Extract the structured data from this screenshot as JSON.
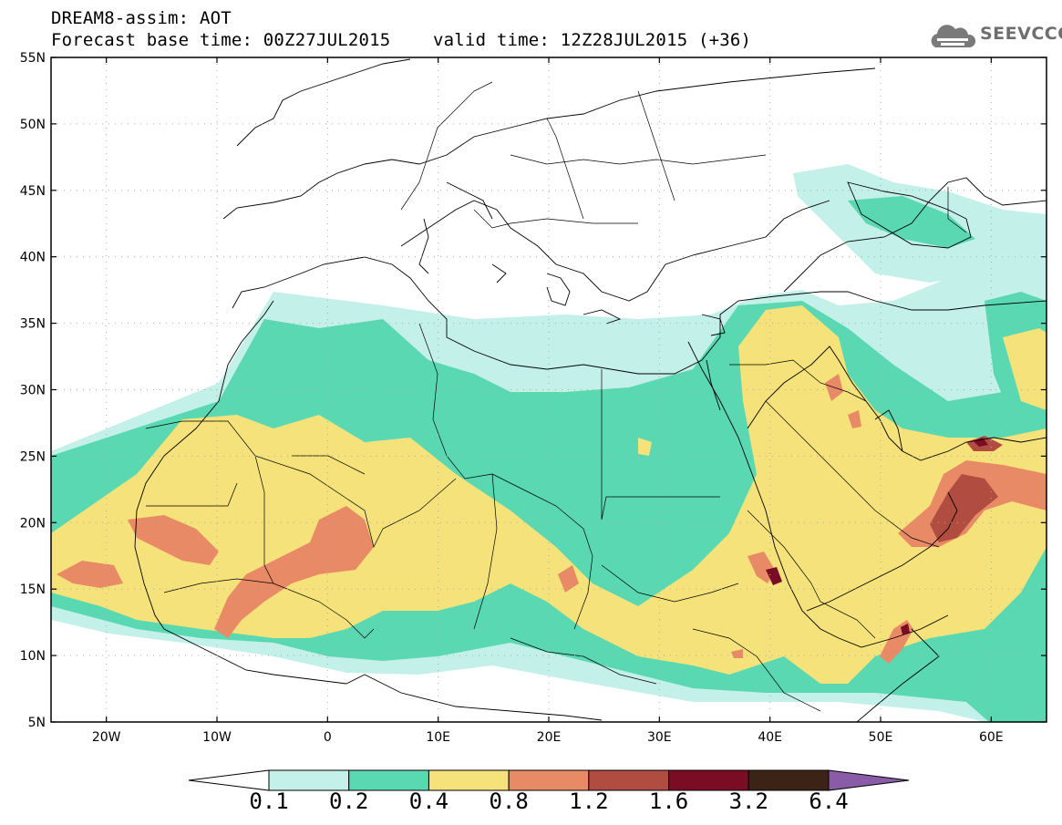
{
  "header": {
    "title": "DREAM8-assim: AOT",
    "base_time": "Forecast base time: 00Z27JUL2015",
    "valid_time": "valid time: 12Z28JUL2015 (+36)"
  },
  "logo": {
    "text": "SEEVCCC",
    "icon": "cloud-icon"
  },
  "map": {
    "lat_labels": [
      "55N",
      "50N",
      "45N",
      "40N",
      "35N",
      "30N",
      "25N",
      "20N",
      "15N",
      "10N",
      "5N"
    ],
    "lon_labels": [
      "20W",
      "10W",
      "0",
      "10E",
      "20E",
      "30E",
      "40E",
      "50E",
      "60E"
    ],
    "lat_range": [
      5,
      55
    ],
    "lon_range": [
      -25,
      65
    ],
    "grid": "dotted"
  },
  "colorbar": {
    "colors": [
      "#ffffff",
      "#c4f0ea",
      "#5ad8b2",
      "#f6e27a",
      "#e88a66",
      "#b14c40",
      "#7a0d24",
      "#3b2416",
      "#8a5ca8"
    ],
    "levels": [
      "0.1",
      "0.2",
      "0.4",
      "0.8",
      "1.2",
      "1.6",
      "3.2",
      "6.4"
    ]
  }
}
